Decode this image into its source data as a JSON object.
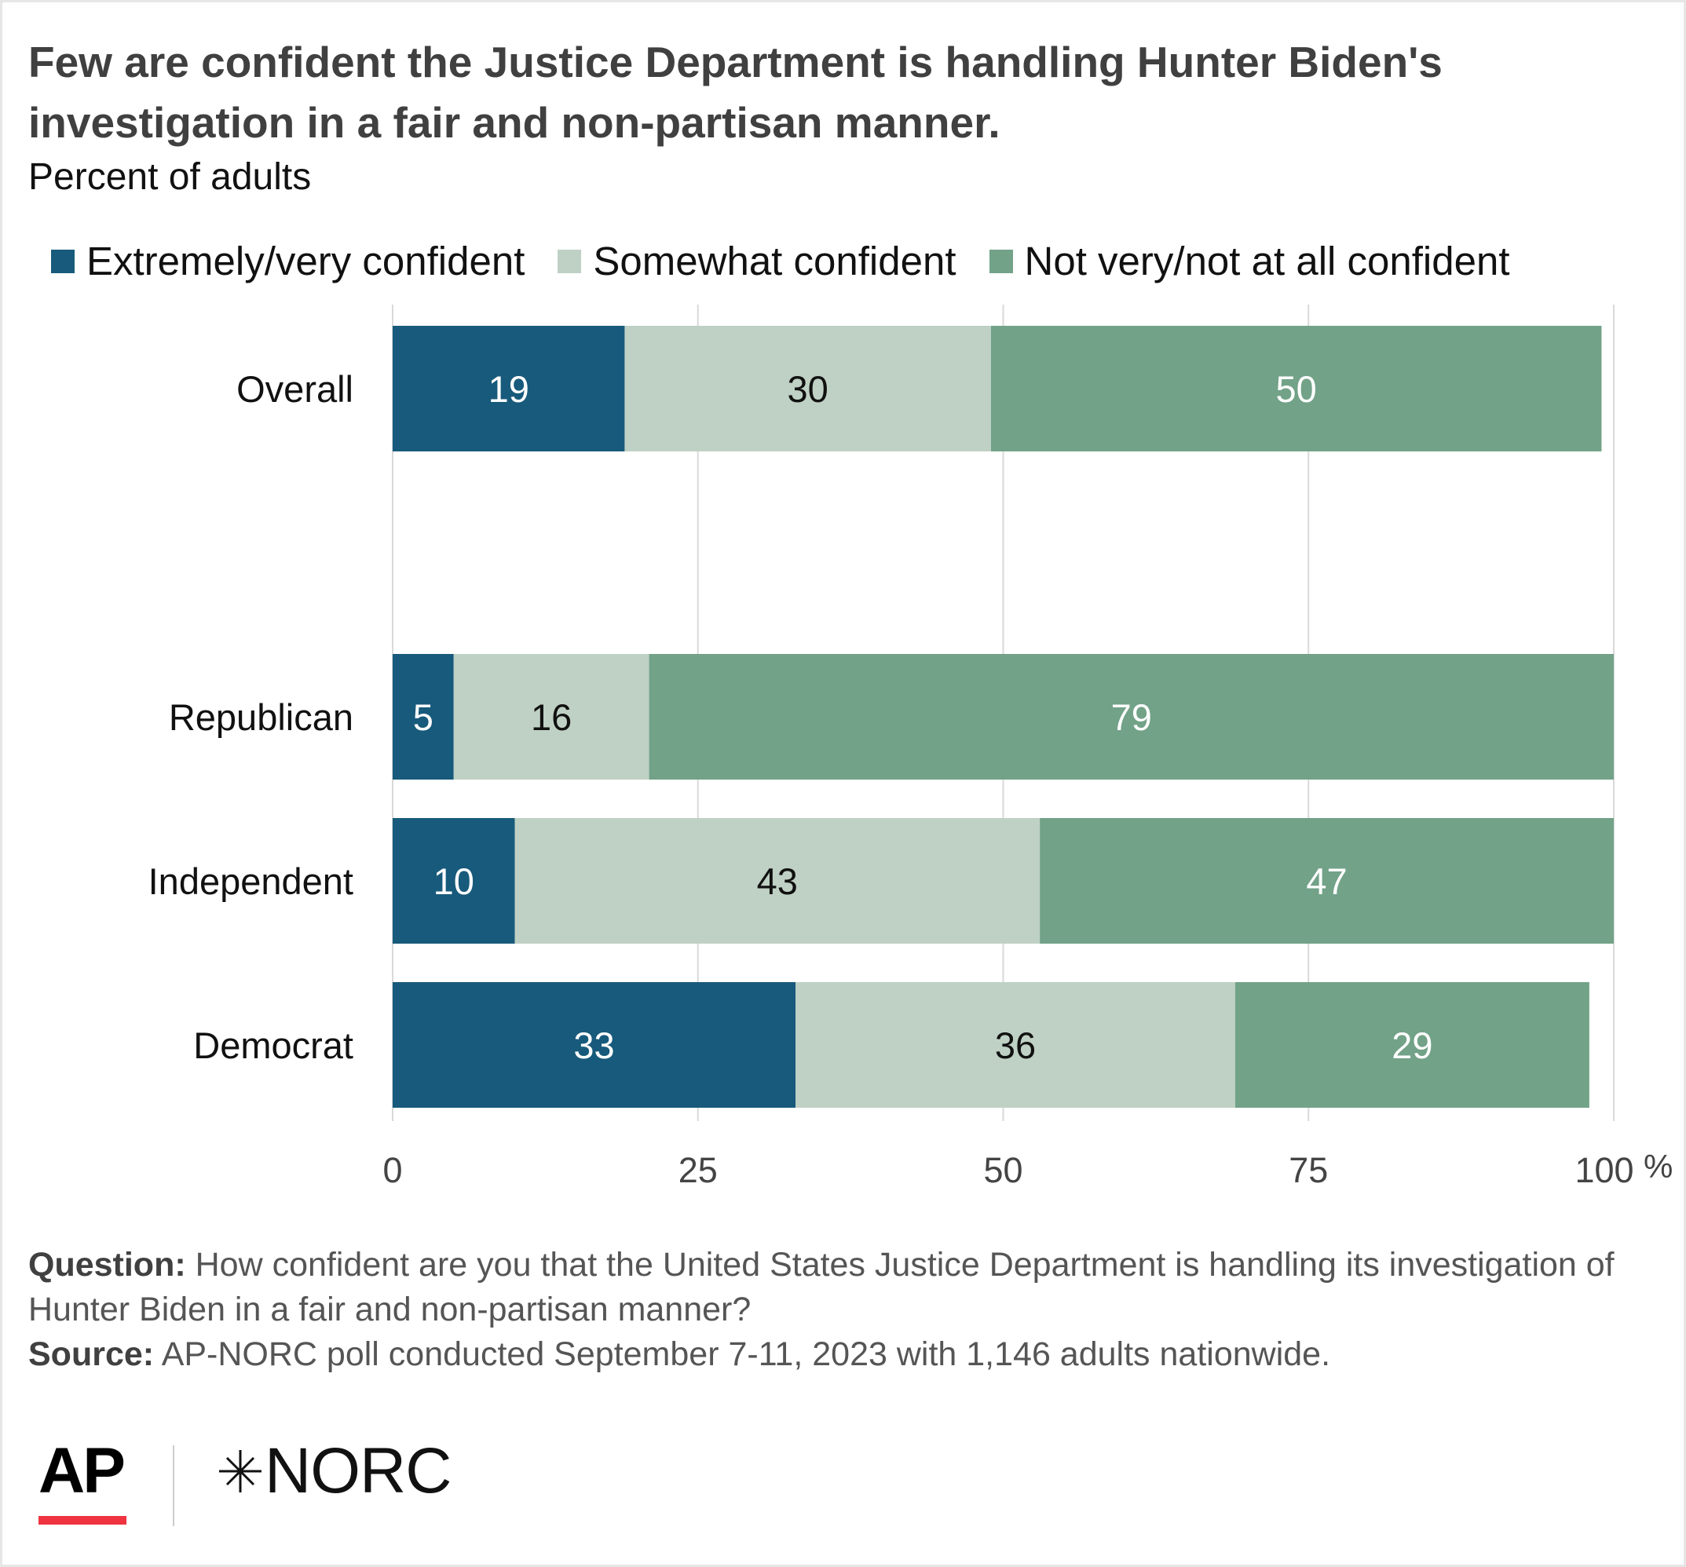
{
  "title": "Few are confident the Justice Department is handling Hunter Biden's investigation in a fair and non-partisan manner.",
  "subtitle": "Percent of adults",
  "colors": {
    "extremely_very": "#185a7b",
    "somewhat": "#bfd1c4",
    "not_very": "#72a288",
    "gridline": "#d9d9d9",
    "label_on_dark": "#ffffff",
    "label_on_light": "#111111"
  },
  "chart_data": {
    "type": "bar",
    "orientation": "horizontal",
    "stacked": true,
    "categories": [
      "Overall",
      "Republican",
      "Independent",
      "Democrat"
    ],
    "series": [
      {
        "name": "Extremely/very confident",
        "color": "#185a7b",
        "values": [
          19,
          5,
          10,
          33
        ]
      },
      {
        "name": "Somewhat confident",
        "color": "#bfd1c4",
        "values": [
          30,
          16,
          43,
          36
        ]
      },
      {
        "name": "Not very/not at all confident",
        "color": "#72a288",
        "values": [
          50,
          79,
          47,
          29
        ]
      }
    ],
    "xlim": [
      0,
      100
    ],
    "xticks": [
      "0",
      "25",
      "50",
      "75",
      "100"
    ],
    "x_unit": "%",
    "grid": true,
    "legend_position": "top"
  },
  "notes": {
    "question_label": "Question:",
    "question_text": "How confident are you that the United States Justice Department is handling its investigation of Hunter Biden in a fair and non-partisan manner?",
    "source_label": "Source:",
    "source_text": "AP-NORC poll conducted September 7-11, 2023 with 1,146 adults nationwide."
  },
  "logos": {
    "ap": "AP",
    "norc": "NORC",
    "norc_icon": "norc-star-icon"
  }
}
